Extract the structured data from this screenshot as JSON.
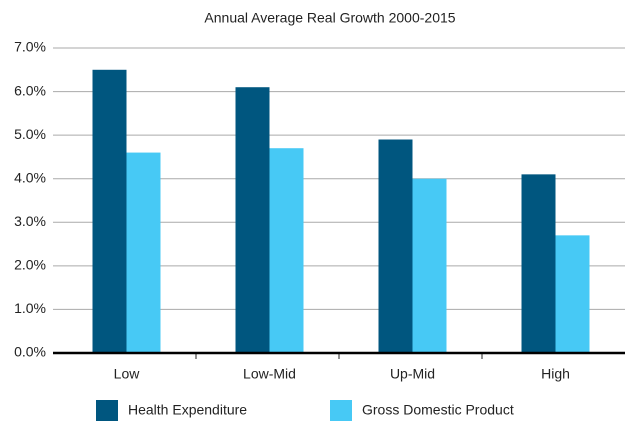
{
  "chart_data": {
    "type": "bar",
    "title": "Annual Average Real Growth 2000-2015",
    "categories": [
      "Low",
      "Low-Mid",
      "Up-Mid",
      "High"
    ],
    "series": [
      {
        "name": "Health Expenditure",
        "color": "#00567f",
        "values": [
          6.5,
          6.1,
          4.9,
          4.1
        ]
      },
      {
        "name": "Gross Domestic Product",
        "color": "#47c9f5",
        "values": [
          4.6,
          4.7,
          4.0,
          2.7
        ]
      }
    ],
    "ylim": [
      0,
      7
    ],
    "yticks": [
      {
        "value": 0,
        "label": "0.0%"
      },
      {
        "value": 1,
        "label": "1.0%"
      },
      {
        "value": 2,
        "label": "2.0%"
      },
      {
        "value": 3,
        "label": "3.0%"
      },
      {
        "value": 4,
        "label": "4.0%"
      },
      {
        "value": 5,
        "label": "5.0%"
      },
      {
        "value": 6,
        "label": "6.0%"
      },
      {
        "value": 7,
        "label": "7.0%"
      }
    ],
    "grid": true,
    "legend": "bottom"
  }
}
